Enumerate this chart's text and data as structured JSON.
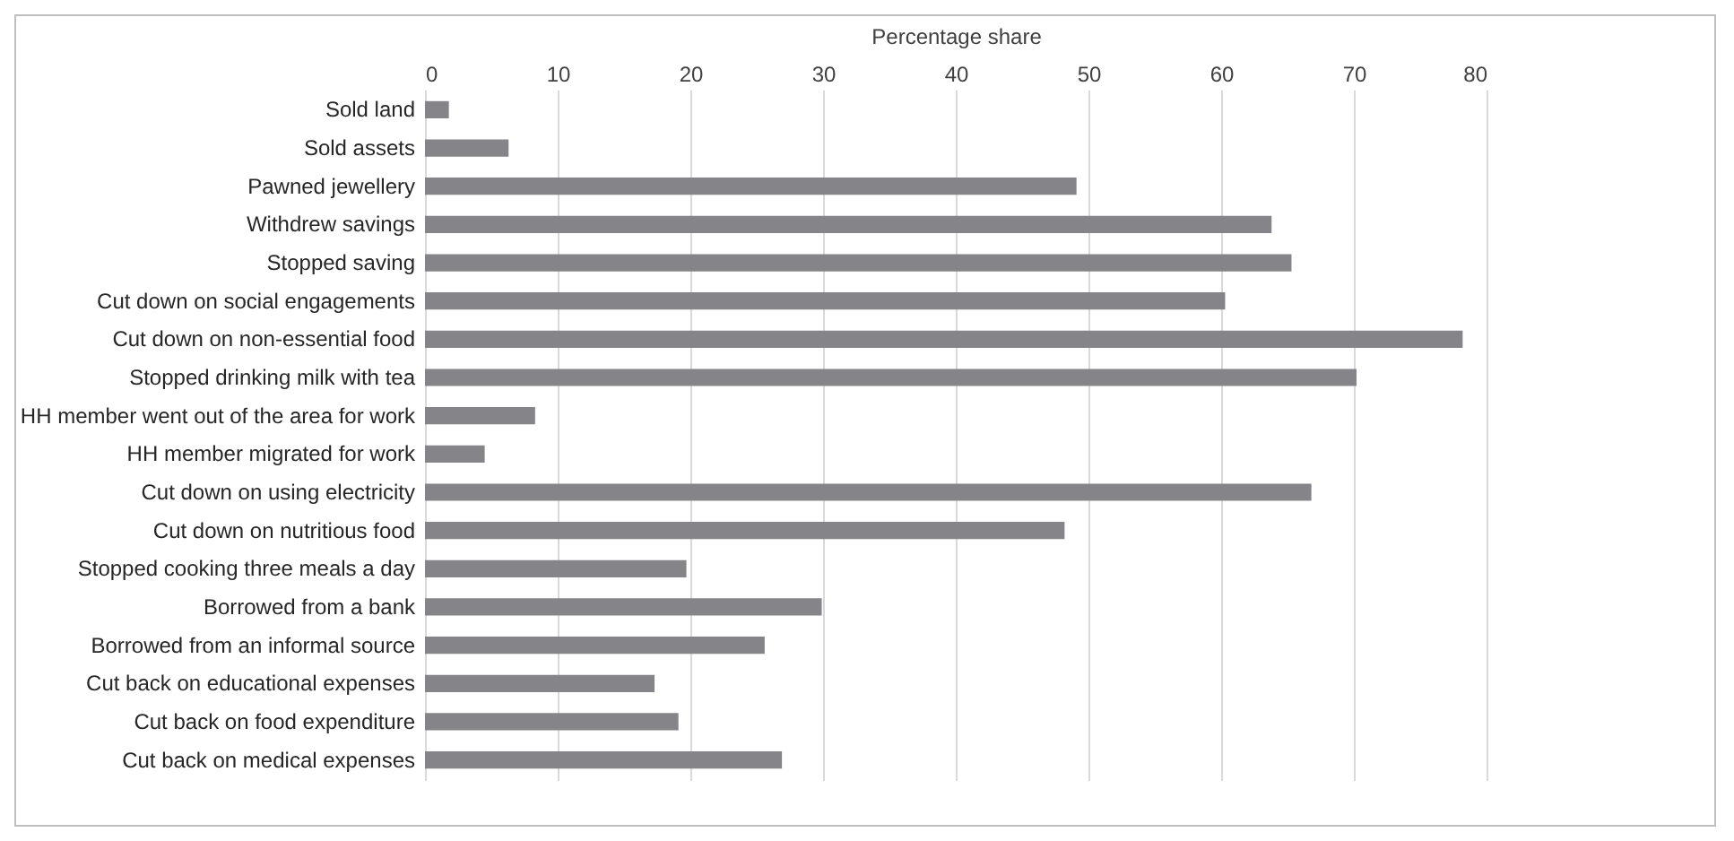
{
  "chart_data": {
    "type": "bar",
    "orientation": "horizontal",
    "xlabel": "Percentage share",
    "categories": [
      "Sold land",
      "Sold assets",
      "Pawned jewellery",
      "Withdrew savings",
      "Stopped saving",
      "Cut down on social engagements",
      "Cut down on non-essential food",
      "Stopped drinking milk with tea",
      "HH member went out of the area for work",
      "HH member migrated for work",
      "Cut down on using electricity",
      "Cut down on nutritious food",
      "Stopped cooking three meals a day",
      "Borrowed from a bank",
      "Borrowed from an informal source",
      "Cut back on educational expenses",
      "Cut back on food expenditure",
      "Cut back on medical expenses"
    ],
    "values": [
      1.8,
      6.3,
      49.1,
      63.8,
      65.3,
      60.3,
      78.2,
      70.2,
      8.3,
      4.5,
      66.8,
      48.2,
      19.7,
      29.9,
      25.6,
      17.3,
      19.1,
      26.9
    ],
    "color": "#858589",
    "xlim": [
      0,
      80
    ],
    "xticks": [
      0,
      10,
      20,
      30,
      40,
      50,
      60,
      70,
      80
    ],
    "grid": "x"
  }
}
